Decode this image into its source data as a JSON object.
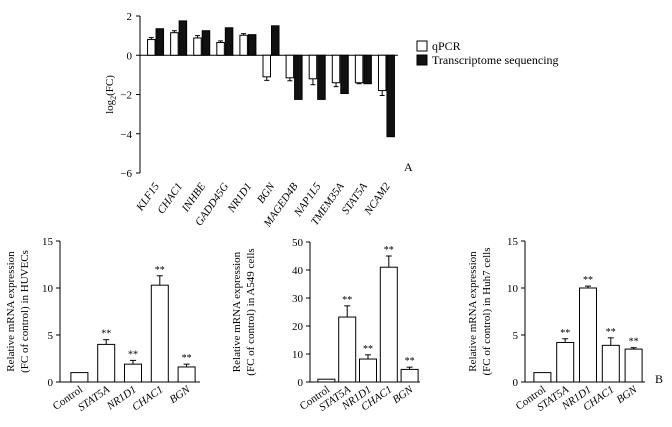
{
  "chart_data": [
    {
      "panel": "A",
      "type": "bar",
      "ylabel_base": "log",
      "ylabel_sub": "2",
      "ylabel_tail": "(FC)",
      "ylim": [
        -6,
        2
      ],
      "yticks": [
        "2",
        "0",
        "−2",
        "−4",
        "−6"
      ],
      "ytick_values": [
        2,
        0,
        -2,
        -4,
        -6
      ],
      "categories": [
        "KLF15",
        "CHAC1",
        "INHBE",
        "GADD45G",
        "NR1D1",
        "BGN",
        "MAGED4B",
        "NAP1L5",
        "TMEM35A",
        "STAT5A",
        "NCAM2"
      ],
      "series": [
        {
          "name": "qPCR",
          "fill": "#ffffff",
          "values": [
            0.8,
            1.15,
            0.88,
            0.65,
            1.02,
            -1.1,
            -1.15,
            -1.2,
            -1.4,
            -1.4,
            -1.8
          ],
          "errors": [
            0.1,
            0.1,
            0.12,
            0.08,
            0.08,
            0.18,
            0.15,
            0.3,
            0.2,
            0.05,
            0.25
          ]
        },
        {
          "name": "Transcriptome sequencing",
          "fill": "#111111",
          "values": [
            1.35,
            1.75,
            1.25,
            1.4,
            1.05,
            1.5,
            -2.25,
            -2.25,
            -1.95,
            -1.45,
            -4.15
          ],
          "errors": [
            0,
            0,
            0,
            0,
            0,
            0,
            0,
            0,
            0,
            0,
            0
          ]
        }
      ],
      "legend": [
        "qPCR",
        "Transcriptome sequencing"
      ],
      "legend_position": "top-right"
    },
    {
      "panel": "HUVEC",
      "type": "bar",
      "ylabel_line1": "Relative mRNA expression",
      "ylabel_line2": "(FC of control) in HUVECs",
      "ylim": [
        0,
        15
      ],
      "yticks": [
        "0",
        "5",
        "10",
        "15"
      ],
      "ytick_values": [
        0,
        5,
        10,
        15
      ],
      "categories": [
        "Control",
        "STAT5A",
        "NR1D1",
        "CHAC1",
        "BGN"
      ],
      "values": [
        1.0,
        4.0,
        1.9,
        10.3,
        1.6
      ],
      "errors": [
        0,
        0.5,
        0.4,
        1.0,
        0.3
      ],
      "significance": [
        "",
        "**",
        "**",
        "**",
        "**"
      ]
    },
    {
      "panel": "A549",
      "type": "bar",
      "ylabel_line1": "Relative mRNA expression",
      "ylabel_line2": "(FC of control) in A549 cells",
      "ylim": [
        0,
        50
      ],
      "yticks": [
        "0",
        "10",
        "20",
        "30",
        "40",
        "50"
      ],
      "ytick_values": [
        0,
        10,
        20,
        30,
        40,
        50
      ],
      "categories": [
        "Control",
        "STAT5A",
        "NR1D1",
        "CHAC1",
        "BGN"
      ],
      "values": [
        1.0,
        23.2,
        8.2,
        41.0,
        4.5
      ],
      "errors": [
        0,
        4.0,
        1.5,
        4.0,
        0.8
      ],
      "significance": [
        "",
        "**",
        "**",
        "**",
        "**"
      ]
    },
    {
      "panel": "Huh7",
      "panel_label": "B",
      "type": "bar",
      "ylabel_line1": "Relative mRNA expression",
      "ylabel_line2": "(FC of control) in Huh7 cells",
      "ylim": [
        0,
        15
      ],
      "yticks": [
        "0",
        "5",
        "10",
        "15"
      ],
      "ytick_values": [
        0,
        5,
        10,
        15
      ],
      "categories": [
        "Control",
        "STAT5A",
        "NR1D1",
        "CHAC1",
        "BGN"
      ],
      "values": [
        1.0,
        4.2,
        10.0,
        3.9,
        3.5
      ],
      "errors": [
        0,
        0.4,
        0.2,
        0.8,
        0.15
      ],
      "significance": [
        "",
        "**",
        "**",
        "**",
        "**"
      ]
    }
  ],
  "panel_label_a": "A",
  "colors": {
    "axis": "#000000",
    "white_bar": "#ffffff",
    "dark_bar": "#111111"
  }
}
